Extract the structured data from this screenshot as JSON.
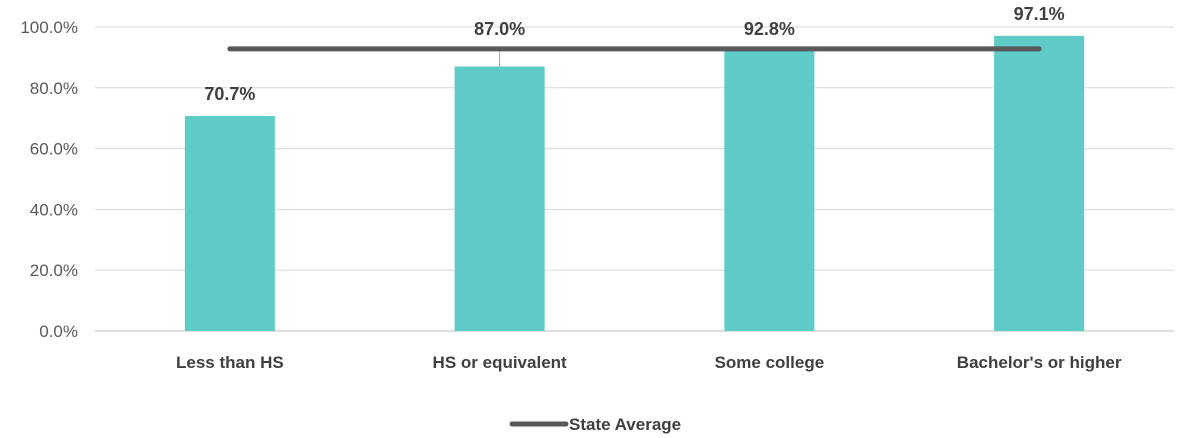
{
  "chart_data": {
    "type": "bar",
    "title": "",
    "xlabel": "",
    "ylabel": "",
    "categories": [
      "Less than HS",
      "HS or equivalent",
      "Some college",
      "Bachelor's or higher"
    ],
    "series": [
      {
        "values": [
          70.7,
          87.0,
          92.8,
          97.1
        ],
        "color": "#5ECBC8"
      }
    ],
    "data_labels": [
      "70.7%",
      "87.0%",
      "92.8%",
      "97.1%"
    ],
    "reference_line": {
      "name": "State Average",
      "value": 92.8,
      "color": "#595959"
    },
    "ylim": [
      0,
      100
    ],
    "yticks": [
      0,
      20,
      40,
      60,
      80,
      100
    ],
    "ytick_labels": [
      "0.0%",
      "20.0%",
      "40.0%",
      "60.0%",
      "80.0%",
      "100.0%"
    ],
    "grid": true,
    "legend": {
      "position": "bottom-center",
      "entries": [
        "State Average"
      ]
    }
  }
}
